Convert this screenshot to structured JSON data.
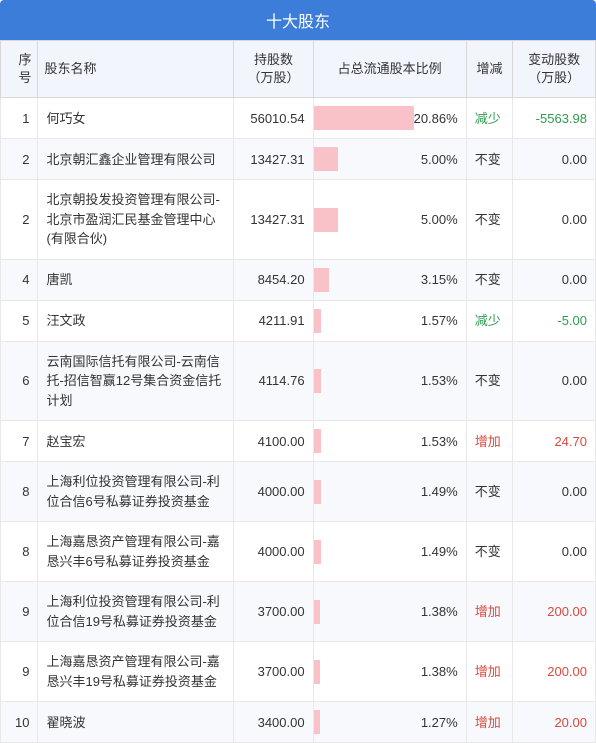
{
  "title": "十大股东",
  "columns": {
    "seq": "序号",
    "name": "股东名称",
    "shares": "持股数\n（万股）",
    "ratio": "占总流通股本比例",
    "change": "增减",
    "delta": "变动股数\n（万股）"
  },
  "maxRatio": 20.86,
  "changeColors": {
    "减少": "green",
    "不变": "",
    "增加": "red"
  },
  "rows": [
    {
      "seq": "1",
      "name": "何巧女",
      "shares": "56010.54",
      "ratio": "20.86%",
      "ratioVal": 20.86,
      "change": "减少",
      "delta": "-5563.98",
      "deltaColor": "green"
    },
    {
      "seq": "2",
      "name": "北京朝汇鑫企业管理有限公司",
      "shares": "13427.31",
      "ratio": "5.00%",
      "ratioVal": 5.0,
      "change": "不变",
      "delta": "0.00",
      "deltaColor": ""
    },
    {
      "seq": "2",
      "name": "北京朝投发投资管理有限公司-北京市盈润汇民基金管理中心(有限合伙)",
      "shares": "13427.31",
      "ratio": "5.00%",
      "ratioVal": 5.0,
      "change": "不变",
      "delta": "0.00",
      "deltaColor": ""
    },
    {
      "seq": "4",
      "name": "唐凯",
      "shares": "8454.20",
      "ratio": "3.15%",
      "ratioVal": 3.15,
      "change": "不变",
      "delta": "0.00",
      "deltaColor": ""
    },
    {
      "seq": "5",
      "name": "汪文政",
      "shares": "4211.91",
      "ratio": "1.57%",
      "ratioVal": 1.57,
      "change": "减少",
      "delta": "-5.00",
      "deltaColor": "green"
    },
    {
      "seq": "6",
      "name": "云南国际信托有限公司-云南信托-招信智赢12号集合资金信托计划",
      "shares": "4114.76",
      "ratio": "1.53%",
      "ratioVal": 1.53,
      "change": "不变",
      "delta": "0.00",
      "deltaColor": ""
    },
    {
      "seq": "7",
      "name": "赵宝宏",
      "shares": "4100.00",
      "ratio": "1.53%",
      "ratioVal": 1.53,
      "change": "增加",
      "delta": "24.70",
      "deltaColor": "red"
    },
    {
      "seq": "8",
      "name": "上海利位投资管理有限公司-利位合信6号私募证券投资基金",
      "shares": "4000.00",
      "ratio": "1.49%",
      "ratioVal": 1.49,
      "change": "不变",
      "delta": "0.00",
      "deltaColor": ""
    },
    {
      "seq": "8",
      "name": "上海嘉恳资产管理有限公司-嘉恳兴丰6号私募证券投资基金",
      "shares": "4000.00",
      "ratio": "1.49%",
      "ratioVal": 1.49,
      "change": "不变",
      "delta": "0.00",
      "deltaColor": ""
    },
    {
      "seq": "9",
      "name": "上海利位投资管理有限公司-利位合信19号私募证券投资基金",
      "shares": "3700.00",
      "ratio": "1.38%",
      "ratioVal": 1.38,
      "change": "增加",
      "delta": "200.00",
      "deltaColor": "red"
    },
    {
      "seq": "9",
      "name": "上海嘉恳资产管理有限公司-嘉恳兴丰19号私募证券投资基金",
      "shares": "3700.00",
      "ratio": "1.38%",
      "ratioVal": 1.38,
      "change": "增加",
      "delta": "200.00",
      "deltaColor": "red"
    },
    {
      "seq": "10",
      "name": "翟晓波",
      "shares": "3400.00",
      "ratio": "1.27%",
      "ratioVal": 1.27,
      "change": "增加",
      "delta": "20.00",
      "deltaColor": "red"
    }
  ]
}
